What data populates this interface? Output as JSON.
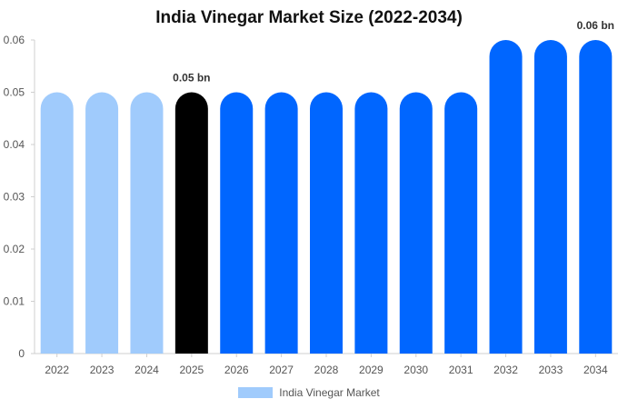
{
  "chart_data": {
    "type": "bar",
    "title": "India Vinegar Market Size (2022-2034)",
    "categories": [
      "2022",
      "2023",
      "2024",
      "2025",
      "2026",
      "2027",
      "2028",
      "2029",
      "2030",
      "2031",
      "2032",
      "2033",
      "2034"
    ],
    "series": [
      {
        "name": "India Vinegar Market",
        "values": [
          0.05,
          0.05,
          0.05,
          0.05,
          0.05,
          0.05,
          0.05,
          0.05,
          0.05,
          0.05,
          0.06,
          0.06,
          0.06
        ]
      }
    ],
    "bar_colors": [
      "#a0cbfc",
      "#a0cbfc",
      "#a0cbfc",
      "#000000",
      "#0066ff",
      "#0066ff",
      "#0066ff",
      "#0066ff",
      "#0066ff",
      "#0066ff",
      "#0066ff",
      "#0066ff",
      "#0066ff"
    ],
    "y_ticks": [
      "0",
      "0.01",
      "0.02",
      "0.03",
      "0.04",
      "0.05",
      "0.06"
    ],
    "ylim": [
      0,
      0.06
    ],
    "data_labels": [
      {
        "category": "2025",
        "text": "0.05 bn"
      },
      {
        "category": "2034",
        "text": "0.06 bn"
      }
    ],
    "grid": false,
    "legend_position": "bottom",
    "legend_color": "#a0cbfc",
    "xlabel": "",
    "ylabel": ""
  }
}
